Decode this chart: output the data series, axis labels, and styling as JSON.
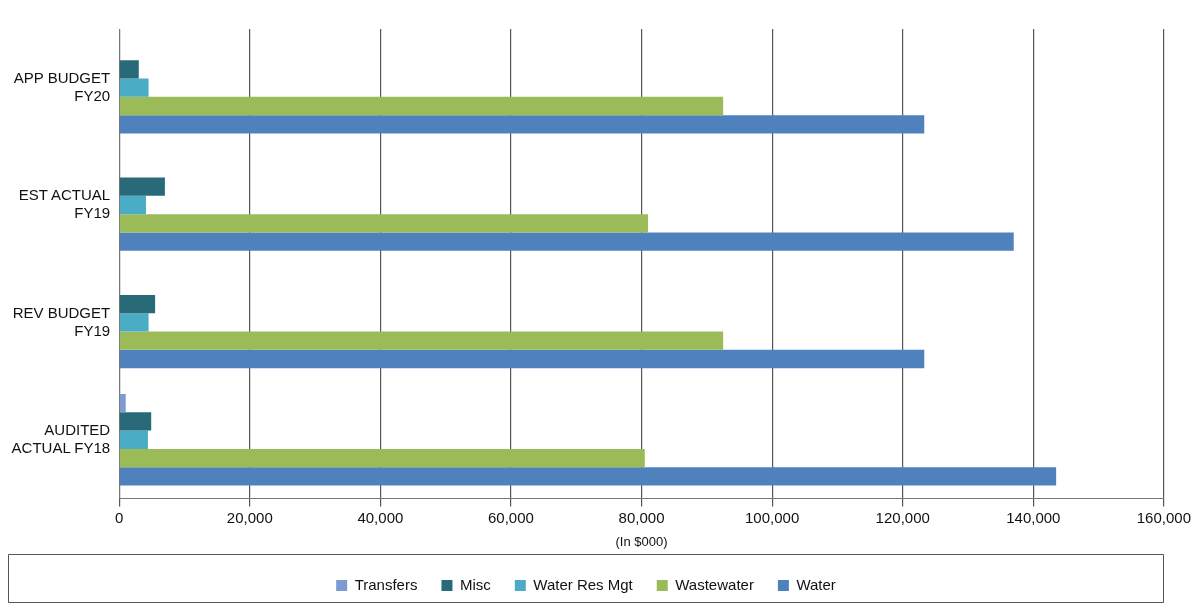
{
  "chart_data": {
    "type": "bar",
    "orientation": "horizontal",
    "xlabel": "(In $000)",
    "categories": [
      "APP BUDGET FY20",
      "EST ACTUAL FY19",
      "REV BUDGET FY19",
      "AUDITED ACTUAL FY18"
    ],
    "series": [
      {
        "name": "Transfers",
        "color": "#7b9bd2",
        "values": [
          0,
          0,
          0,
          1000
        ]
      },
      {
        "name": "Misc",
        "color": "#286a78",
        "values": [
          3000,
          7000,
          5500,
          4900
        ]
      },
      {
        "name": "Water Res Mgt",
        "color": "#4bacc6",
        "values": [
          4500,
          4100,
          4500,
          4400
        ]
      },
      {
        "name": "Wastewater",
        "color": "#9bbb59",
        "values": [
          92500,
          81000,
          92500,
          80500
        ]
      },
      {
        "name": "Water",
        "color": "#4f81bd",
        "values": [
          123300,
          137000,
          123300,
          143500
        ]
      }
    ],
    "xlim": [
      0,
      160000
    ],
    "xticks": [
      0,
      {
        "value": 20000,
        "label": "20,000"
      },
      {
        "value": 40000,
        "label": "40,000"
      },
      {
        "value": 60000,
        "label": "60,000"
      },
      {
        "value": 80000,
        "label": "80,000"
      },
      {
        "value": 100000,
        "label": "100,000"
      },
      {
        "value": 120000,
        "label": "120,000"
      },
      {
        "value": 140000,
        "label": "140,000"
      },
      {
        "value": 160000,
        "label": "160,000"
      }
    ],
    "grid": "x",
    "legend": "bottom"
  }
}
